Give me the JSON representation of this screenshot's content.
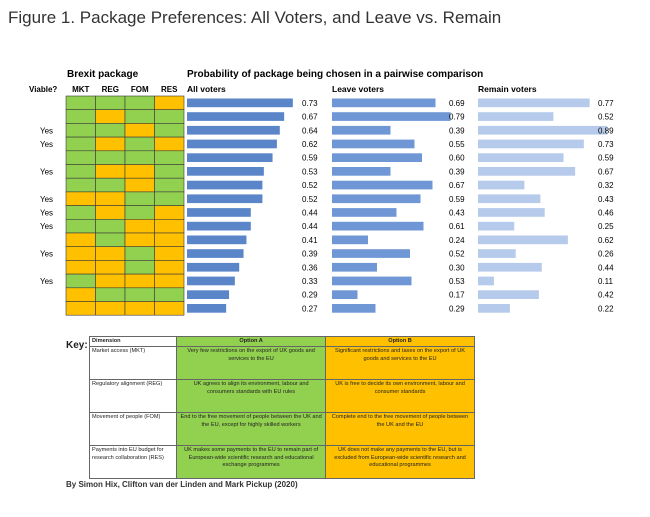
{
  "figure_title": "Figure 1. Package Preferences: All Voters, and Leave vs. Remain",
  "colors": {
    "option_a": "#92d050",
    "option_b": "#ffc000",
    "all_bar": "#5a86c9",
    "leave_bar": "#6f97d6",
    "remain_bar": "#b6cbeb"
  },
  "chart_data": {
    "type": "bar",
    "orientation": "horizontal",
    "package_header": "Brexit package",
    "viable_header": "Viable?",
    "dimension_headers": [
      "MKT",
      "REG",
      "FOM",
      "RES"
    ],
    "title": "Probability of package being chosen in a pairwise comparison",
    "viable": [
      "",
      "",
      "Yes",
      "Yes",
      "",
      "Yes",
      "",
      "Yes",
      "Yes",
      "Yes",
      "",
      "Yes",
      "",
      "Yes",
      "",
      ""
    ],
    "packages": [
      [
        "A",
        "A",
        "A",
        "B"
      ],
      [
        "A",
        "B",
        "A",
        "A"
      ],
      [
        "A",
        "A",
        "B",
        "A"
      ],
      [
        "A",
        "B",
        "A",
        "B"
      ],
      [
        "A",
        "A",
        "A",
        "A"
      ],
      [
        "A",
        "B",
        "B",
        "A"
      ],
      [
        "A",
        "A",
        "B",
        "A"
      ],
      [
        "B",
        "B",
        "A",
        "A"
      ],
      [
        "A",
        "B",
        "A",
        "B"
      ],
      [
        "A",
        "A",
        "B",
        "B"
      ],
      [
        "B",
        "A",
        "B",
        "B"
      ],
      [
        "B",
        "B",
        "A",
        "B"
      ],
      [
        "B",
        "B",
        "A",
        "B"
      ],
      [
        "A",
        "B",
        "B",
        "B"
      ],
      [
        "B",
        "A",
        "A",
        "A"
      ],
      [
        "B",
        "B",
        "B",
        "B"
      ]
    ],
    "series": [
      {
        "name": "All voters",
        "values": [
          0.73,
          0.67,
          0.64,
          0.62,
          0.59,
          0.53,
          0.52,
          0.52,
          0.44,
          0.44,
          0.41,
          0.39,
          0.36,
          0.33,
          0.29,
          0.27
        ]
      },
      {
        "name": "Leave voters",
        "values": [
          0.69,
          0.79,
          0.39,
          0.55,
          0.6,
          0.39,
          0.67,
          0.59,
          0.43,
          0.61,
          0.24,
          0.52,
          0.3,
          0.53,
          0.17,
          0.29
        ]
      },
      {
        "name": "Remain voters",
        "values": [
          0.77,
          0.52,
          0.89,
          0.73,
          0.59,
          0.67,
          0.32,
          0.43,
          0.46,
          0.25,
          0.62,
          0.26,
          0.44,
          0.11,
          0.42,
          0.22
        ]
      }
    ]
  },
  "key": {
    "label": "Key:",
    "headers": [
      "Dimension",
      "Option A",
      "Option B"
    ],
    "rows": [
      {
        "dimension": "Market access (MKT)",
        "option_a": "Very few restrictions on the export of UK goods and services to the EU",
        "option_b": "Significant restrictions and taxes on the export of UK goods and services to the EU"
      },
      {
        "dimension": "Regulatory alignment (REG)",
        "option_a": "UK agrees to align its environment, labour and consumers standards with EU rules",
        "option_b": "UK is free to decide its own environment, labour and consumer standards"
      },
      {
        "dimension": "Movement of people (FOM)",
        "option_a": "End to the free movement of people between the UK and the EU, except for highly skilled workers",
        "option_b": "Complete end to the free movement of people between the UK and the EU"
      },
      {
        "dimension": "Payments into EU budget for research collaboration (RES)",
        "option_a": "UK makes some payments to the EU to remain part of European-wide scientific research and educational exchange programmes",
        "option_b": "UK does not make any payments to the EU, but is excluded from European-wide scientific research and educational programmes"
      }
    ]
  },
  "credit": "By Simon Hix, Clifton van der Linden and Mark Pickup (2020)"
}
